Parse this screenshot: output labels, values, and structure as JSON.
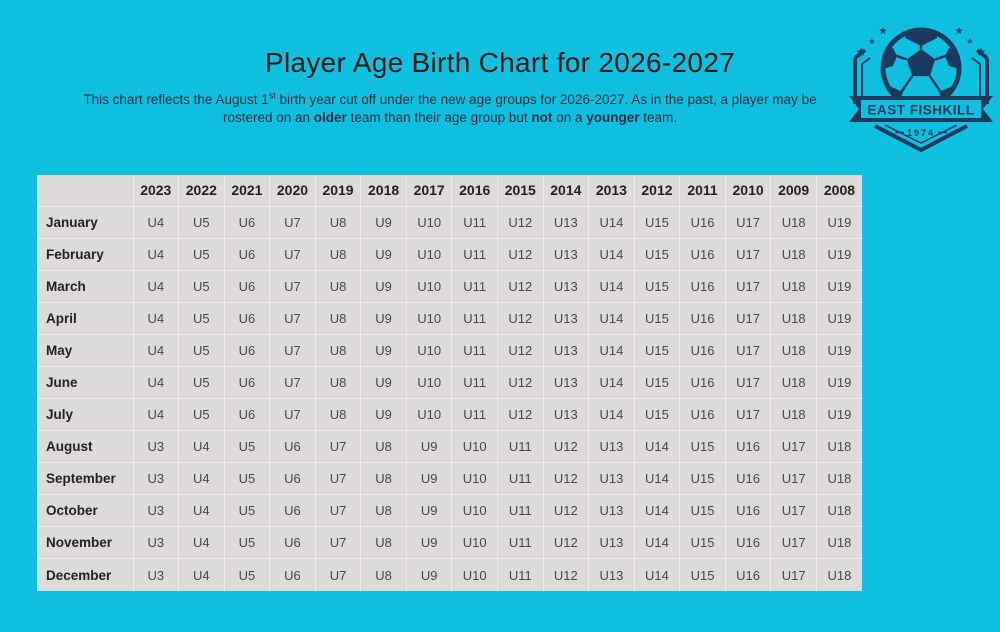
{
  "colors": {
    "background_cyan": "#0fc0e0",
    "logo_navy": "#1c3a5e",
    "table_background": "#dcdbda",
    "table_gridline": "#edeae8",
    "title_text": "#191919",
    "subtitle_text": "#14333f",
    "cell_text": "#474747"
  },
  "header": {
    "title": "Player Age Birth Chart for 2026-2027",
    "subtitle_segments": [
      {
        "text": "This chart reflects the August 1"
      },
      {
        "text": "st",
        "sup": true
      },
      {
        "text": " birth year cut off under the new age groups for 2026-2027. As in the past, a player may be"
      },
      {
        "br": true
      },
      {
        "text": "rostered on an "
      },
      {
        "text": "older",
        "bold": true
      },
      {
        "text": " team than their age group but "
      },
      {
        "text": "not",
        "bold": true
      },
      {
        "text": " on a "
      },
      {
        "text": "younger",
        "bold": true
      },
      {
        "text": " team."
      }
    ]
  },
  "logo": {
    "club_name": "EAST FISHKILL",
    "established": "1974"
  },
  "table": {
    "type": "table",
    "corner": "",
    "years": [
      "2023",
      "2022",
      "2021",
      "2020",
      "2019",
      "2018",
      "2017",
      "2016",
      "2015",
      "2014",
      "2013",
      "2012",
      "2011",
      "2010",
      "2009",
      "2008"
    ],
    "rows": [
      {
        "month": "January",
        "ages": [
          "U4",
          "U5",
          "U6",
          "U7",
          "U8",
          "U9",
          "U10",
          "U11",
          "U12",
          "U13",
          "U14",
          "U15",
          "U16",
          "U17",
          "U18",
          "U19"
        ]
      },
      {
        "month": "February",
        "ages": [
          "U4",
          "U5",
          "U6",
          "U7",
          "U8",
          "U9",
          "U10",
          "U11",
          "U12",
          "U13",
          "U14",
          "U15",
          "U16",
          "U17",
          "U18",
          "U19"
        ]
      },
      {
        "month": "March",
        "ages": [
          "U4",
          "U5",
          "U6",
          "U7",
          "U8",
          "U9",
          "U10",
          "U11",
          "U12",
          "U13",
          "U14",
          "U15",
          "U16",
          "U17",
          "U18",
          "U19"
        ]
      },
      {
        "month": "April",
        "ages": [
          "U4",
          "U5",
          "U6",
          "U7",
          "U8",
          "U9",
          "U10",
          "U11",
          "U12",
          "U13",
          "U14",
          "U15",
          "U16",
          "U17",
          "U18",
          "U19"
        ]
      },
      {
        "month": "May",
        "ages": [
          "U4",
          "U5",
          "U6",
          "U7",
          "U8",
          "U9",
          "U10",
          "U11",
          "U12",
          "U13",
          "U14",
          "U15",
          "U16",
          "U17",
          "U18",
          "U19"
        ]
      },
      {
        "month": "June",
        "ages": [
          "U4",
          "U5",
          "U6",
          "U7",
          "U8",
          "U9",
          "U10",
          "U11",
          "U12",
          "U13",
          "U14",
          "U15",
          "U16",
          "U17",
          "U18",
          "U19"
        ]
      },
      {
        "month": "July",
        "ages": [
          "U4",
          "U5",
          "U6",
          "U7",
          "U8",
          "U9",
          "U10",
          "U11",
          "U12",
          "U13",
          "U14",
          "U15",
          "U16",
          "U17",
          "U18",
          "U19"
        ]
      },
      {
        "month": "August",
        "ages": [
          "U3",
          "U4",
          "U5",
          "U6",
          "U7",
          "U8",
          "U9",
          "U10",
          "U11",
          "U12",
          "U13",
          "U14",
          "U15",
          "U16",
          "U17",
          "U18"
        ]
      },
      {
        "month": "September",
        "ages": [
          "U3",
          "U4",
          "U5",
          "U6",
          "U7",
          "U8",
          "U9",
          "U10",
          "U11",
          "U12",
          "U13",
          "U14",
          "U15",
          "U16",
          "U17",
          "U18"
        ]
      },
      {
        "month": "October",
        "ages": [
          "U3",
          "U4",
          "U5",
          "U6",
          "U7",
          "U8",
          "U9",
          "U10",
          "U11",
          "U12",
          "U13",
          "U14",
          "U15",
          "U16",
          "U17",
          "U18"
        ]
      },
      {
        "month": "November",
        "ages": [
          "U3",
          "U4",
          "U5",
          "U6",
          "U7",
          "U8",
          "U9",
          "U10",
          "U11",
          "U12",
          "U13",
          "U14",
          "U15",
          "U16",
          "U17",
          "U18"
        ]
      },
      {
        "month": "December",
        "ages": [
          "U3",
          "U4",
          "U5",
          "U6",
          "U7",
          "U8",
          "U9",
          "U10",
          "U11",
          "U12",
          "U13",
          "U14",
          "U15",
          "U16",
          "U17",
          "U18"
        ]
      }
    ]
  }
}
